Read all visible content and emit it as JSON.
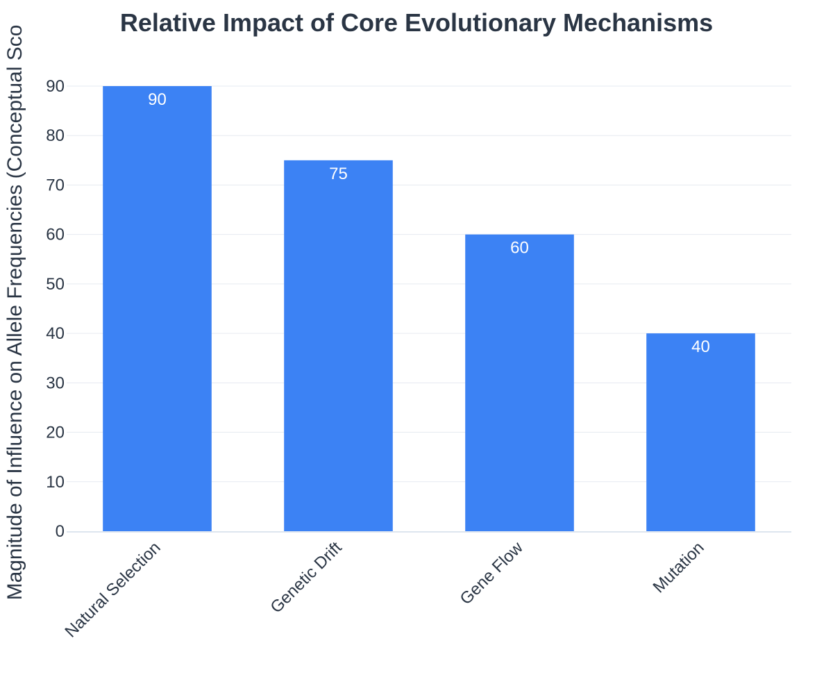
{
  "colors": {
    "bar": "#3c82f4",
    "text": "#2a3544",
    "grid": "#e6eaf0",
    "axis": "#dde5ef",
    "data_label": "#ffffff"
  },
  "chart_data": {
    "type": "bar",
    "title": "Relative Impact of Core Evolutionary Mechanisms",
    "xlabel": "",
    "ylabel": "Magnitude of Influence on Allele Frequencies (Conceptual Sco",
    "categories": [
      "Natural Selection",
      "Genetic Drift",
      "Gene Flow",
      "Mutation"
    ],
    "values": [
      90,
      75,
      60,
      40
    ],
    "data_labels": [
      "90",
      "75",
      "60",
      "40"
    ],
    "ylim": [
      0,
      90
    ],
    "yticks": [
      "0",
      "10",
      "20",
      "30",
      "40",
      "50",
      "60",
      "70",
      "80",
      "90"
    ],
    "grid": true,
    "legend": "none"
  }
}
